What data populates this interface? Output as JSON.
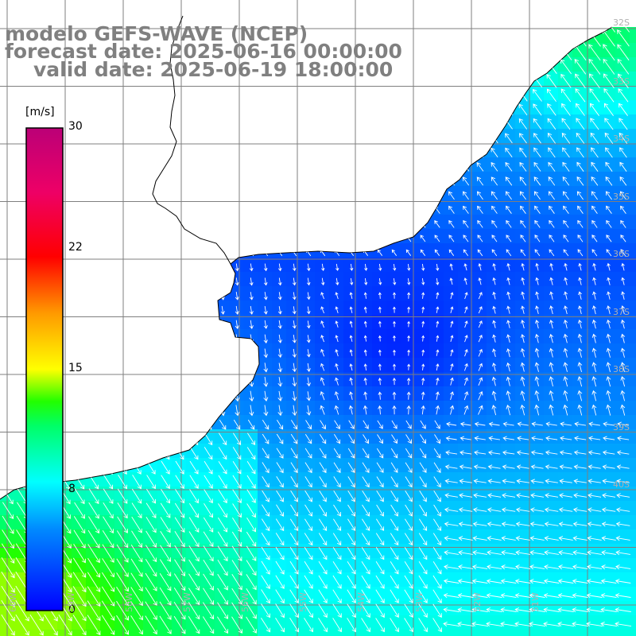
{
  "title": {
    "line1": "modelo GEFS-WAVE (NCEP)",
    "line2": "forecast date: 2025-06-16 00:00:00",
    "line3": "valid date: 2025-06-19 18:00:00"
  },
  "colorbar": {
    "unit": "[m/s]",
    "ticks": [
      "30",
      "22",
      "15",
      "8",
      "0"
    ],
    "min": 0,
    "max": 30,
    "stops": [
      {
        "v": 0,
        "color": "#0000ff"
      },
      {
        "v": 5,
        "color": "#0088ff"
      },
      {
        "v": 8,
        "color": "#00ffff"
      },
      {
        "v": 11.5,
        "color": "#00ff66"
      },
      {
        "v": 13,
        "color": "#22ff00"
      },
      {
        "v": 15,
        "color": "#ffff00"
      },
      {
        "v": 18.5,
        "color": "#ff9900"
      },
      {
        "v": 22,
        "color": "#ff0000"
      },
      {
        "v": 26,
        "color": "#ee0066"
      },
      {
        "v": 30,
        "color": "#bb0077"
      }
    ]
  },
  "map": {
    "lat_labels": [
      "32S",
      "33S",
      "34S",
      "35S",
      "36S",
      "37S",
      "38S",
      "39S",
      "40S"
    ],
    "lon_labels": [
      "60W",
      "59W",
      "58W",
      "57W",
      "56W",
      "55W",
      "54W",
      "53W",
      "52W",
      "51W"
    ],
    "land_color": "#ffffff",
    "grid_color": "#7f7f7f",
    "coast_color": "#000000",
    "arrow_color": "#ffffff"
  }
}
